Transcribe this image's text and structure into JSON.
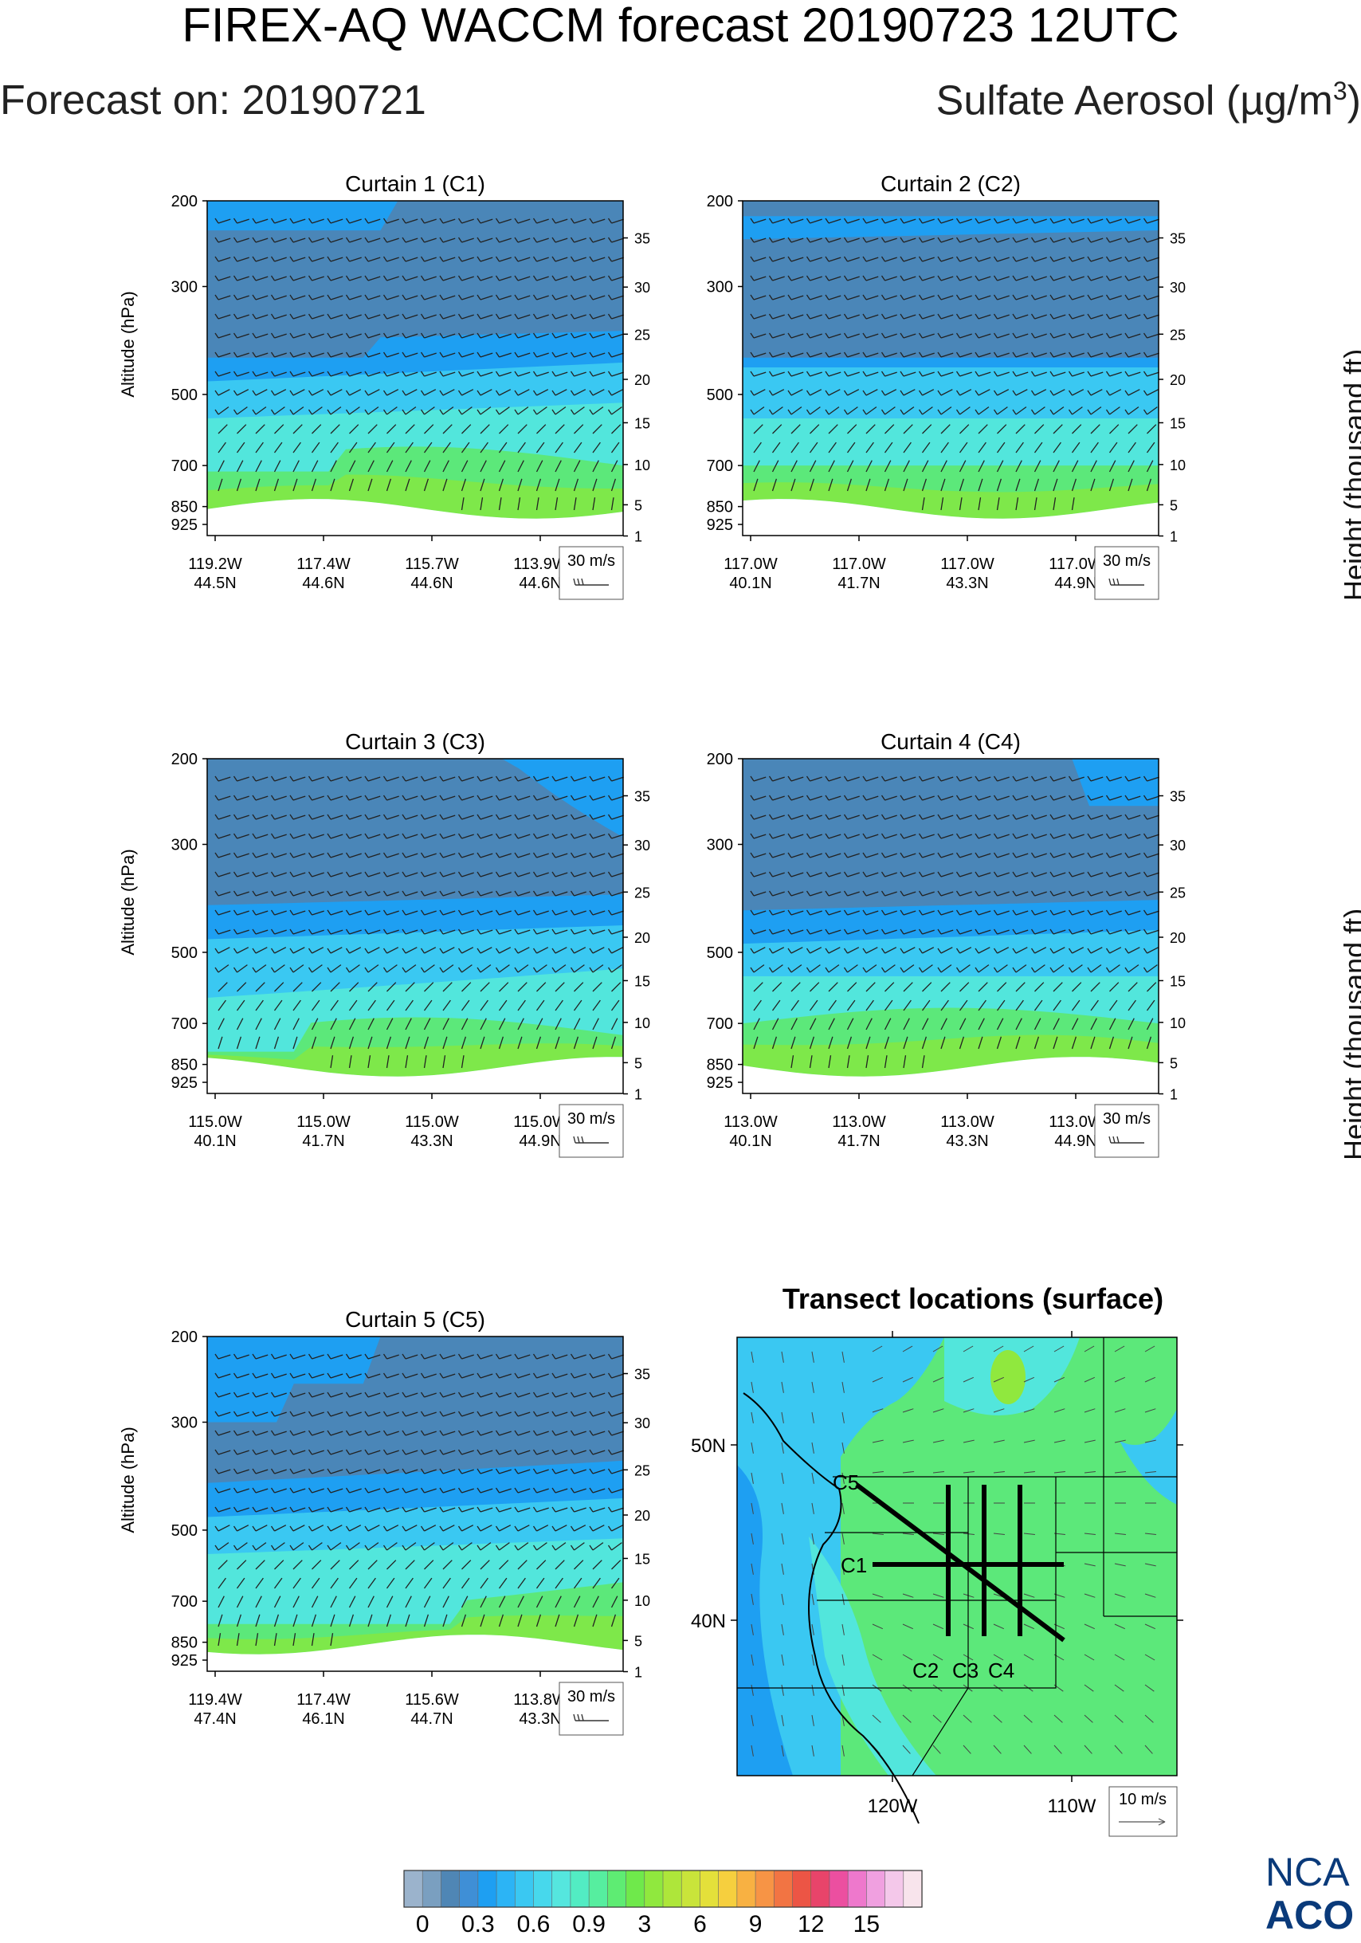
{
  "header": {
    "title": "FIREX-AQ WACCM forecast 20190723 12UTC",
    "forecast_on": "Forecast on: 20190721",
    "species": "Sulfate Aerosol (µg/m",
    "species_sup": "3",
    "species_close": ")"
  },
  "logo": {
    "line1": "NCA",
    "line2": "ACO"
  },
  "right_axis_label": "Height (thousand ft)",
  "chart_data": [
    {
      "type": "heatmap",
      "title": "Curtain 1 (C1)",
      "ylabel": "Altitude (hPa)",
      "y_ticks": [
        200,
        300,
        500,
        700,
        850,
        925
      ],
      "y2_ticks": [
        35,
        30,
        25,
        20,
        15,
        10,
        5,
        1
      ],
      "x_ticks": [
        {
          "lon": "119.2W",
          "lat": "44.5N"
        },
        {
          "lon": "117.4W",
          "lat": "44.6N"
        },
        {
          "lon": "115.7W",
          "lat": "44.6N"
        },
        {
          "lon": "113.9W",
          "lat": "44.6N"
        }
      ],
      "wind_ref": "30 m/s",
      "profile": "c1"
    },
    {
      "type": "heatmap",
      "title": "Curtain 2 (C2)",
      "y_ticks": [
        200,
        300,
        500,
        700,
        850,
        925
      ],
      "y2_ticks": [
        35,
        30,
        25,
        20,
        15,
        10,
        5,
        1
      ],
      "x_ticks": [
        {
          "lon": "117.0W",
          "lat": "40.1N"
        },
        {
          "lon": "117.0W",
          "lat": "41.7N"
        },
        {
          "lon": "117.0W",
          "lat": "43.3N"
        },
        {
          "lon": "117.0W",
          "lat": "44.9N"
        }
      ],
      "wind_ref": "30 m/s",
      "profile": "c2"
    },
    {
      "type": "heatmap",
      "title": "Curtain 3 (C3)",
      "ylabel": "Altitude (hPa)",
      "y_ticks": [
        200,
        300,
        500,
        700,
        850,
        925
      ],
      "y2_ticks": [
        35,
        30,
        25,
        20,
        15,
        10,
        5,
        1
      ],
      "x_ticks": [
        {
          "lon": "115.0W",
          "lat": "40.1N"
        },
        {
          "lon": "115.0W",
          "lat": "41.7N"
        },
        {
          "lon": "115.0W",
          "lat": "43.3N"
        },
        {
          "lon": "115.0W",
          "lat": "44.9N"
        }
      ],
      "wind_ref": "30 m/s",
      "profile": "c3"
    },
    {
      "type": "heatmap",
      "title": "Curtain 4 (C4)",
      "y_ticks": [
        200,
        300,
        500,
        700,
        850,
        925
      ],
      "y2_ticks": [
        35,
        30,
        25,
        20,
        15,
        10,
        5,
        1
      ],
      "x_ticks": [
        {
          "lon": "113.0W",
          "lat": "40.1N"
        },
        {
          "lon": "113.0W",
          "lat": "41.7N"
        },
        {
          "lon": "113.0W",
          "lat": "43.3N"
        },
        {
          "lon": "113.0W",
          "lat": "44.9N"
        }
      ],
      "wind_ref": "30 m/s",
      "profile": "c4"
    },
    {
      "type": "heatmap",
      "title": "Curtain 5 (C5)",
      "ylabel": "Altitude (hPa)",
      "y_ticks": [
        200,
        300,
        500,
        700,
        850,
        925
      ],
      "y2_ticks": [
        35,
        30,
        25,
        20,
        15,
        10,
        5,
        1
      ],
      "x_ticks": [
        {
          "lon": "119.4W",
          "lat": "47.4N"
        },
        {
          "lon": "117.4W",
          "lat": "46.1N"
        },
        {
          "lon": "115.6W",
          "lat": "44.7N"
        },
        {
          "lon": "113.8W",
          "lat": "43.3N"
        }
      ],
      "wind_ref": "30 m/s",
      "profile": "c5"
    }
  ],
  "map": {
    "title": "Transect locations (surface)",
    "lat_ticks": [
      "50N",
      "40N"
    ],
    "lon_ticks": [
      "120W",
      "110W"
    ],
    "wind_ref": "10 m/s",
    "transect_labels": [
      "C5",
      "C1",
      "C2",
      "C3",
      "C4"
    ]
  },
  "colorbar": {
    "labels": [
      "0",
      "0.3",
      "0.6",
      "0.9",
      "3",
      "6",
      "9",
      "12",
      "15"
    ],
    "colors": [
      "#9bb3cc",
      "#7a9fc0",
      "#4f86b5",
      "#3f8fd6",
      "#1e9ff2",
      "#2cb4f5",
      "#3ac8f2",
      "#47d8ec",
      "#55e6de",
      "#52ecc3",
      "#56ee9f",
      "#5eec73",
      "#6fe94b",
      "#90e83e",
      "#aee63a",
      "#c9e43a",
      "#e4e03a",
      "#f6cf3e",
      "#f8b142",
      "#f79445",
      "#f27443",
      "#ec5545",
      "#e8446a",
      "#ec4fa0",
      "#ee78cc",
      "#f0a0e0",
      "#f4c8ea",
      "#f8e4ec"
    ]
  }
}
